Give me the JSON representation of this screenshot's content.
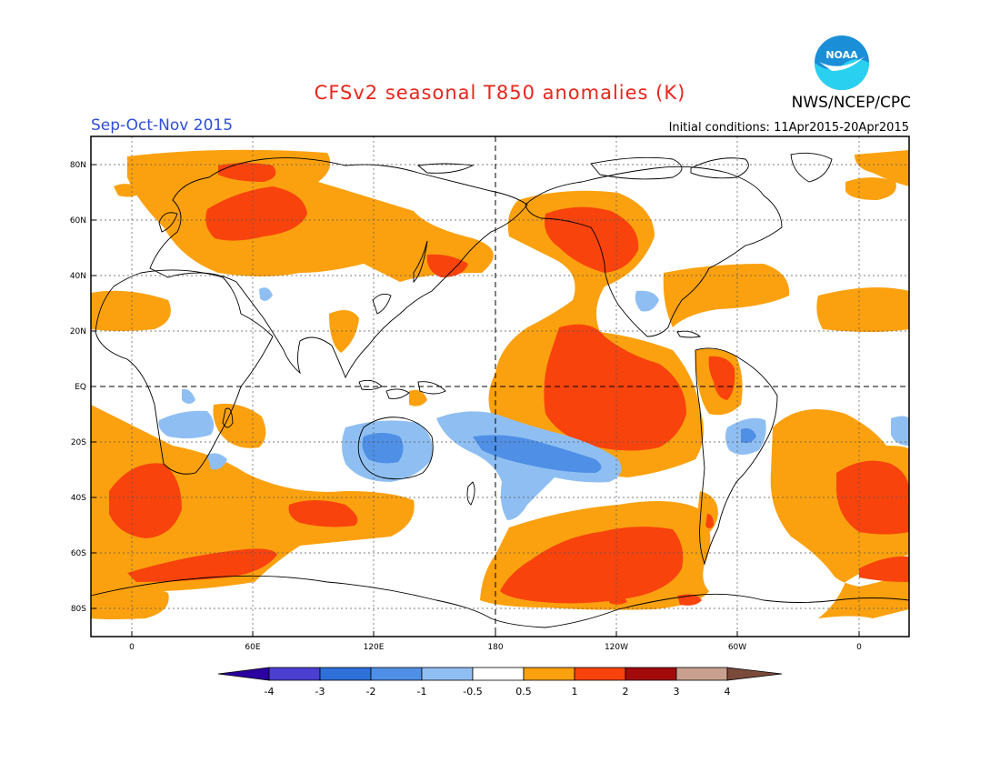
{
  "title": "CFSv2 seasonal T850 anomalies (K)",
  "agency": "NWS/NCEP/CPC",
  "period": "Sep-Oct-Nov 2015",
  "initial_conditions": "Initial conditions: 11Apr2015-20Apr2015",
  "logo_text": "NOAA",
  "lat_labels": [
    "80N",
    "60N",
    "40N",
    "20N",
    "EQ",
    "20S",
    "40S",
    "60S",
    "80S"
  ],
  "lon_labels": [
    "0",
    "60E",
    "120E",
    "180",
    "120W",
    "60W",
    "0"
  ],
  "colorbar": {
    "labels": [
      "-4",
      "-3",
      "-2",
      "-1",
      "-0.5",
      "0.5",
      "1",
      "2",
      "3",
      "4"
    ],
    "colors": [
      "#2a00a0",
      "#4a3fd0",
      "#2f6fd8",
      "#4f8fe6",
      "#8fbff2",
      "#ffffff",
      "#fba10f",
      "#f8430d",
      "#a30a0a",
      "#c9a08f",
      "#7a4a3a"
    ]
  },
  "colors": {
    "pos_weak": "#fba10f",
    "pos_strong": "#f8430d",
    "neg_weak": "#8fbff2",
    "neg_strong": "#4f8fe6"
  }
}
